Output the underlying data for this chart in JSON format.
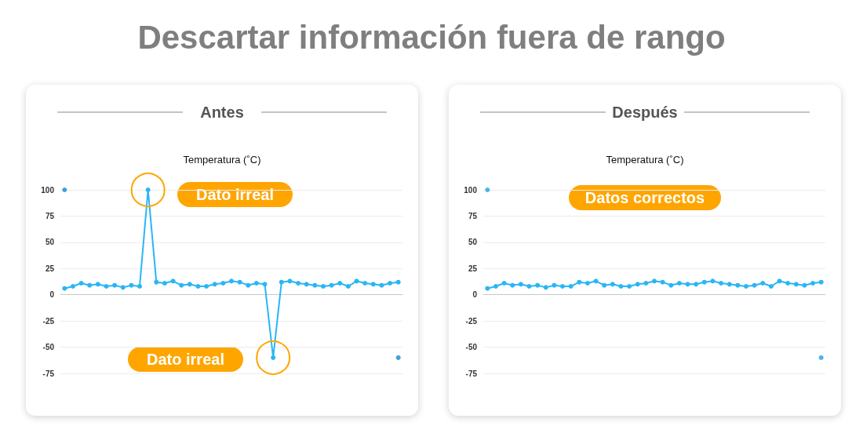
{
  "chart_data": [
    {
      "type": "line",
      "title": "Descartar información fuera de rango",
      "subtitle": "Antes",
      "ylabel": "Temperatura (˚C)",
      "categories": [
        null,
        null,
        null,
        null,
        null,
        null,
        null,
        null,
        null,
        null,
        null,
        null,
        null,
        null,
        null,
        null,
        null,
        null,
        null,
        null,
        null,
        null,
        null,
        null,
        null,
        null,
        null,
        null,
        null,
        null,
        null,
        null,
        null,
        null,
        null,
        null,
        null,
        null,
        null,
        null,
        null
      ],
      "series": [
        {
          "type": "line",
          "color": "#29b6f6",
          "values": [
            6,
            8,
            11,
            9,
            10,
            8,
            9,
            7,
            9,
            8,
            100,
            12,
            11,
            13,
            9,
            10,
            8,
            8,
            10,
            11,
            13,
            12,
            9,
            11,
            10,
            -60,
            12,
            13,
            11,
            10,
            9,
            8,
            9,
            11,
            8,
            13,
            11,
            10,
            9,
            11,
            12
          ]
        },
        {
          "type": "scatter",
          "color": "#0b8ad6",
          "values": [
            100,
            null,
            null,
            null,
            null,
            null,
            null,
            null,
            null,
            null,
            null,
            null,
            null,
            null,
            null,
            null,
            null,
            null,
            null,
            null,
            null,
            null,
            null,
            null,
            null,
            null,
            null,
            null,
            null,
            null,
            null,
            null,
            null,
            null,
            null,
            null,
            null,
            null,
            null,
            null,
            -60
          ]
        }
      ],
      "annotations": [
        "Dato irreal",
        "Dato irreal"
      ],
      "ylim": [
        -75,
        100
      ],
      "yticks": [
        -75,
        -50,
        -25,
        0,
        25,
        50,
        75,
        100
      ],
      "grid": "y",
      "tick_labels": "y",
      "marker": "circle",
      "line_style": "solid"
    },
    {
      "type": "line",
      "subtitle": "Después",
      "ylabel": "Temperatura (˚C)",
      "categories": [
        null,
        null,
        null,
        null,
        null,
        null,
        null,
        null,
        null,
        null,
        null,
        null,
        null,
        null,
        null,
        null,
        null,
        null,
        null,
        null,
        null,
        null,
        null,
        null,
        null,
        null,
        null,
        null,
        null,
        null,
        null,
        null,
        null,
        null,
        null,
        null,
        null,
        null,
        null,
        null,
        null
      ],
      "series": [
        {
          "type": "line",
          "color": "#29b6f6",
          "values": [
            6,
            8,
            11,
            9,
            10,
            8,
            9,
            7,
            9,
            8,
            8,
            12,
            11,
            13,
            9,
            10,
            8,
            8,
            10,
            11,
            13,
            12,
            9,
            11,
            10,
            10,
            12,
            13,
            11,
            10,
            9,
            8,
            9,
            11,
            8,
            13,
            11,
            10,
            9,
            11,
            12
          ]
        },
        {
          "type": "scatter",
          "color": "#1aa3e8",
          "values": [
            100,
            null,
            null,
            null,
            null,
            null,
            null,
            null,
            null,
            null,
            null,
            null,
            null,
            null,
            null,
            null,
            null,
            null,
            null,
            null,
            null,
            null,
            null,
            null,
            null,
            null,
            null,
            null,
            null,
            null,
            null,
            null,
            null,
            null,
            null,
            null,
            null,
            null,
            null,
            null,
            -60
          ]
        }
      ],
      "annotations": [
        "Datos correctos"
      ],
      "ylim": [
        -75,
        100
      ],
      "yticks": [
        -75,
        -50,
        -25,
        0,
        25,
        50,
        75,
        100
      ],
      "grid": "y",
      "tick_labels": "y",
      "marker": "circle",
      "line_style": "solid"
    }
  ]
}
